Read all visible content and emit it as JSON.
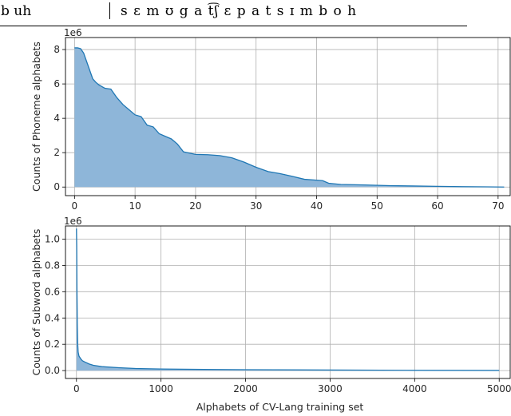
{
  "top_text": {
    "left": "b uh",
    "right": "s ɛ m ʊ g a t͡ʃ  ɛ p a t s ɪ m b o h"
  },
  "chart_data": [
    {
      "type": "area",
      "x": [
        0,
        0.5,
        1,
        1.5,
        2,
        2.5,
        3,
        3.5,
        4,
        5,
        6,
        7,
        8,
        9,
        10,
        11,
        12,
        13,
        14,
        15,
        16,
        17,
        18,
        20,
        22,
        24,
        26,
        28,
        30,
        32,
        34,
        36,
        38,
        40,
        41,
        42,
        44,
        48,
        52,
        56,
        60,
        64,
        68,
        71
      ],
      "y": [
        8.1,
        8.1,
        8.05,
        7.8,
        7.3,
        6.8,
        6.3,
        6.1,
        5.95,
        5.75,
        5.7,
        5.2,
        4.8,
        4.5,
        4.2,
        4.1,
        3.6,
        3.5,
        3.1,
        2.95,
        2.8,
        2.5,
        2.05,
        1.9,
        1.88,
        1.83,
        1.7,
        1.45,
        1.15,
        0.9,
        0.78,
        0.62,
        0.45,
        0.4,
        0.37,
        0.22,
        0.15,
        0.12,
        0.08,
        0.06,
        0.04,
        0.02,
        0.01,
        0.0
      ],
      "xlim": [
        -1.5,
        72
      ],
      "ylim": [
        -0.5,
        8.7
      ],
      "xticks": [
        0,
        10,
        20,
        30,
        40,
        50,
        60,
        70
      ],
      "yticks": [
        0,
        2,
        4,
        6,
        8
      ],
      "ylabel": "Counts of Phoneme alphabets",
      "xlabel": "",
      "multiplier": "1e6",
      "grid": true,
      "line_color": "#1f77b4",
      "fill_color": "#8eb6d9"
    },
    {
      "type": "area",
      "x": [
        0,
        3,
        6,
        10,
        15,
        20,
        30,
        40,
        50,
        70,
        100,
        150,
        200,
        300,
        500,
        700,
        1000,
        1500,
        2000,
        3000,
        4000,
        5000
      ],
      "y": [
        1.08,
        0.95,
        0.6,
        0.35,
        0.2,
        0.14,
        0.11,
        0.1,
        0.09,
        0.075,
        0.065,
        0.05,
        0.04,
        0.03,
        0.022,
        0.016,
        0.012,
        0.009,
        0.007,
        0.004,
        0.002,
        0.001
      ],
      "xlim": [
        -130,
        5130
      ],
      "ylim": [
        -0.06,
        1.1
      ],
      "xticks": [
        0,
        1000,
        2000,
        3000,
        4000,
        5000
      ],
      "yticks": [
        0.0,
        0.2,
        0.4,
        0.6,
        0.8,
        1.0
      ],
      "ylabel": "Counts of Subword alphabets",
      "xlabel": "Alphabets of CV-Lang training set",
      "multiplier": "1e6",
      "grid": true,
      "line_color": "#1f77b4",
      "fill_color": "#8eb6d9"
    }
  ]
}
